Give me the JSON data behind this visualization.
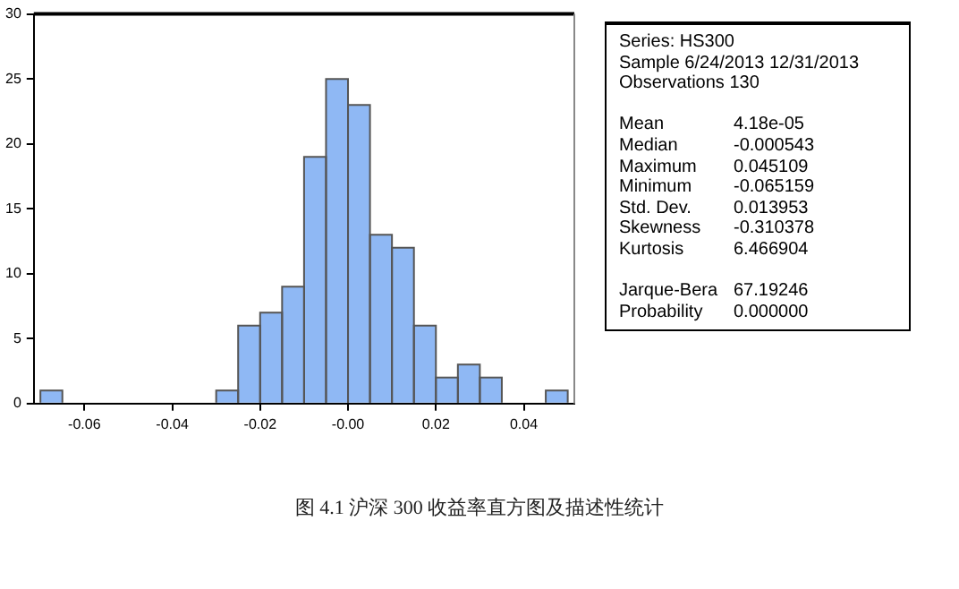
{
  "chart_data": {
    "type": "histogram",
    "title": "图 4.1  沪深 300 收益率直方图及描述性统计",
    "bins": [
      -0.07,
      -0.065,
      -0.03,
      -0.025,
      -0.02,
      -0.015,
      -0.01,
      -0.005,
      0,
      0.005,
      0.01,
      0.015,
      0.02,
      0.025,
      0.03,
      0.035,
      0.045,
      0.05
    ],
    "values": [
      1,
      0,
      1,
      6,
      7,
      9,
      19,
      25,
      23,
      13,
      12,
      6,
      2,
      3,
      2,
      0,
      1
    ],
    "color": "#8fb8f4",
    "xlim": [
      -0.0715,
      0.0515
    ],
    "xticks": [
      -0.06,
      -0.04,
      -0.02,
      {
        "value": 0,
        "label": "-0.00"
      },
      0.02,
      0.04
    ],
    "ylim": [
      0,
      30
    ],
    "yticks": [
      0,
      5,
      10,
      15,
      20,
      25,
      30
    ],
    "grid": false,
    "legend": false,
    "annotations": [
      "Series: HS300\nSample 6/24/2013 12/31/2013\nObservations 130",
      "Mean\t4.18e-05\nMedian\t-0.000543\nMaximum\t0.045109\nMinimum\t-0.065159\nStd. Dev.\t0.013953\nSkewness\t-0.310378\nKurtosis\t6.466904",
      "Jarque-Bera\t67.19246\nProbability\t0.000000"
    ]
  }
}
